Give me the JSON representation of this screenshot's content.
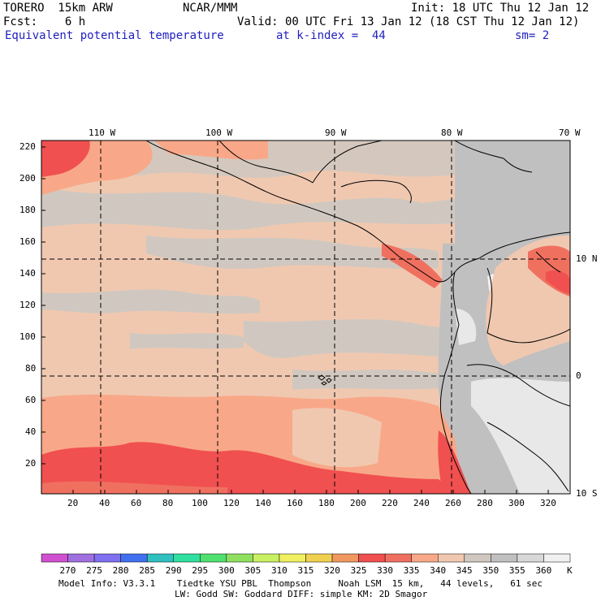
{
  "header": {
    "model": "TORERO  15km ARW",
    "center": "NCAR/MMM",
    "init": "Init: 18 UTC Thu 12 Jan 12",
    "fcst": "Fcst:    6 h",
    "valid": "Valid: 00 UTC Fri 13 Jan 12 (18 CST Thu 12 Jan 12)",
    "field": "Equivalent potential temperature",
    "level": "at k-index =  44",
    "smooth": "sm= 2"
  },
  "axes": {
    "top_lon": [
      "110 W",
      "100 W",
      "90 W",
      "80 W",
      "70 W"
    ],
    "right_lat": [
      "10 N",
      "0",
      "10 S"
    ],
    "left_ticks": [
      "220",
      "200",
      "180",
      "160",
      "140",
      "120",
      "100",
      "80",
      "60",
      "40",
      "20"
    ],
    "bottom_ticks": [
      "20",
      "40",
      "60",
      "80",
      "100",
      "120",
      "140",
      "160",
      "180",
      "200",
      "220",
      "240",
      "260",
      "280",
      "300",
      "320"
    ]
  },
  "colorbar": {
    "labels": [
      "270",
      "275",
      "280",
      "285",
      "290",
      "295",
      "300",
      "305",
      "310",
      "315",
      "320",
      "325",
      "330",
      "335",
      "340",
      "345",
      "350",
      "355",
      "360"
    ],
    "unit": "K",
    "colors": [
      "#d050d0",
      "#a070e0",
      "#8070f0",
      "#4070f0",
      "#30c0c0",
      "#30e0a0",
      "#50e070",
      "#90e060",
      "#c8f060",
      "#f0f060",
      "#f0d050",
      "#f09860",
      "#f05050",
      "#f07060",
      "#f8a888",
      "#f0c8b0",
      "#d0c8c0",
      "#c0c0c0",
      "#d8d8d8",
      "#f0f0f0"
    ]
  },
  "footer": {
    "line1": "Model Info: V3.3.1    Tiedtke YSU PBL  Thompson     Noah LSM  15 km,   44 levels,   61 sec",
    "line2": "LW: Godd SW: Goddard DIFF: simple KM: 2D Smagor"
  }
}
